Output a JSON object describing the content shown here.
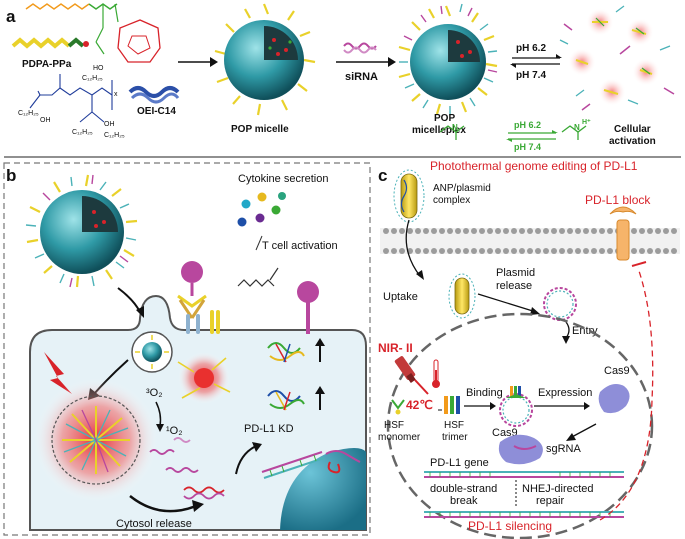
{
  "panels": {
    "a": {
      "label": "a",
      "pdpa_ppa": "PDPA-PPa",
      "oei_c14": "OEI-C14",
      "c12h25": "C₁₂H₂₅",
      "oh": "OH",
      "ho": "HO",
      "x": "x",
      "pop_micelle": "POP micelle",
      "sirna": "siRNA",
      "pop_micelleplex_1": "POP",
      "pop_micelleplex_2": "micelleplex",
      "ph_high": "pH 6.2",
      "ph_low": "pH 7.4",
      "ph_high_small": "pH 6.2",
      "ph_low_small": "pH 7.4",
      "cellular_1": "Cellular",
      "cellular_2": "activation"
    },
    "b": {
      "label": "b",
      "cytokine": "Cytokine secretion",
      "t_cell": "T cell activation",
      "triplet_o2": "³O₂",
      "singlet_o2": "¹O₂",
      "pdl1_kd": "PD-L1 KD",
      "cytosol": "Cytosol release"
    },
    "c": {
      "label": "c",
      "title": "Photothermal genome editing of PD-L1",
      "anp_1": "ANP/plasmid",
      "anp_2": "complex",
      "pdl1_block": "PD-L1 block",
      "uptake": "Uptake",
      "plasmid_1": "Plasmid",
      "plasmid_2": "release",
      "entry": "Entry",
      "nir": "NIR- II",
      "temp": "42℃",
      "binding": "Binding",
      "expression": "Expression",
      "cas9_a": "Cas9",
      "cas9_b": "Cas9",
      "hsf_mono_1": "HSF",
      "hsf_mono_2": "monomer",
      "hsf_tri_1": "HSF",
      "hsf_tri_2": "trimer",
      "sgrna": "sgRNA",
      "pdl1_gene": "PD-L1 gene",
      "ds_1": "double-strand",
      "ds_2": "break",
      "nhej_1": "NHEJ-directed",
      "nhej_2": "repair",
      "silencing": "PD-L1 silencing"
    }
  },
  "colors": {
    "accent_red": "#d8232a",
    "ph_green": "#3aa935",
    "micelle_teal": "#3a9fa8",
    "cell_fill": "#e6f2f7",
    "nucleus": "#2d8fa8",
    "tcr_pink": "#b8479e"
  }
}
